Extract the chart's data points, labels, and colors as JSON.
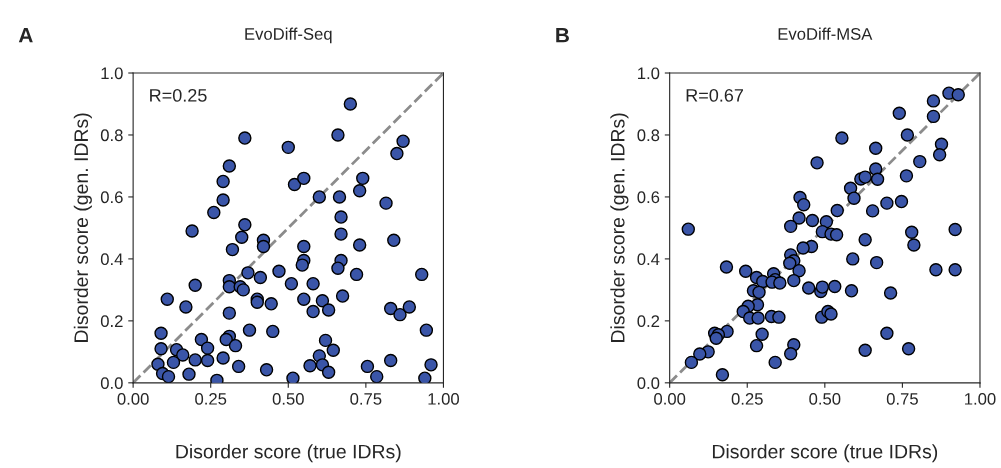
{
  "chart_data": [
    {
      "type": "scatter",
      "title": "EvoDiff-Seq",
      "xlabel": "Disorder score (true IDRs)",
      "ylabel": "Disorder score (gen. IDRs)",
      "annotations": [
        "A",
        "R=0.25"
      ],
      "xlim": [
        0,
        1
      ],
      "ylim": [
        0,
        1
      ],
      "xticks": [
        {
          "value": 0,
          "label": "0.00"
        },
        {
          "value": 0.25,
          "label": "0.25"
        },
        {
          "value": 0.5,
          "label": "0.50"
        },
        {
          "value": 0.75,
          "label": "0.75"
        },
        {
          "value": 1,
          "label": "1.00"
        }
      ],
      "yticks": [
        {
          "value": 0,
          "label": "0.0"
        },
        {
          "value": 0.2,
          "label": "0.2"
        },
        {
          "value": 0.4,
          "label": "0.4"
        },
        {
          "value": 0.6,
          "label": "0.6"
        },
        {
          "value": 0.8,
          "label": "0.8"
        },
        {
          "value": 1,
          "label": "1.0"
        }
      ],
      "grid": false,
      "legend": false,
      "marker": "circle",
      "series": [
        {
          "type": "line",
          "color": "#8c8c8c",
          "line_style": "dashed",
          "marker": "none",
          "x": [
            0,
            1
          ],
          "values": [
            0,
            1
          ]
        },
        {
          "color": "#3a55a8",
          "x": [
            0.7,
            0.66,
            0.36,
            0.5,
            0.87,
            0.85,
            0.31,
            0.29,
            0.52,
            0.55,
            0.74,
            0.73,
            0.6,
            0.665,
            0.29,
            0.26,
            0.815,
            0.67,
            0.19,
            0.36,
            0.35,
            0.67,
            0.32,
            0.42,
            0.42,
            0.55,
            0.73,
            0.84,
            0.55,
            0.545,
            0.67,
            0.66,
            0.47,
            0.37,
            0.31,
            0.41,
            0.31,
            0.345,
            0.355,
            0.51,
            0.58,
            0.72,
            0.93,
            0.2,
            0.11,
            0.17,
            0.4,
            0.4,
            0.445,
            0.55,
            0.61,
            0.58,
            0.63,
            0.675,
            0.83,
            0.86,
            0.89,
            0.31,
            0.09,
            0.375,
            0.45,
            0.945,
            0.22,
            0.31,
            0.3,
            0.33,
            0.62,
            0.645,
            0.09,
            0.14,
            0.24,
            0.16,
            0.2,
            0.24,
            0.29,
            0.13,
            0.08,
            0.6,
            0.61,
            0.57,
            0.34,
            0.43,
            0.755,
            0.83,
            0.96,
            0.095,
            0.114,
            0.18,
            0.27,
            0.515,
            0.63,
            0.785,
            0.94
          ],
          "values": [
            0.9,
            0.8,
            0.79,
            0.76,
            0.78,
            0.74,
            0.7,
            0.65,
            0.64,
            0.66,
            0.66,
            0.62,
            0.6,
            0.6,
            0.59,
            0.55,
            0.58,
            0.535,
            0.49,
            0.51,
            0.47,
            0.48,
            0.43,
            0.46,
            0.44,
            0.44,
            0.445,
            0.46,
            0.395,
            0.38,
            0.395,
            0.37,
            0.36,
            0.355,
            0.33,
            0.34,
            0.31,
            0.31,
            0.3,
            0.32,
            0.32,
            0.35,
            0.35,
            0.315,
            0.27,
            0.245,
            0.27,
            0.26,
            0.255,
            0.27,
            0.265,
            0.23,
            0.235,
            0.28,
            0.24,
            0.22,
            0.245,
            0.225,
            0.16,
            0.17,
            0.166,
            0.17,
            0.14,
            0.15,
            0.14,
            0.12,
            0.137,
            0.105,
            0.11,
            0.107,
            0.112,
            0.09,
            0.074,
            0.072,
            0.08,
            0.066,
            0.06,
            0.087,
            0.058,
            0.055,
            0.053,
            0.042,
            0.053,
            0.072,
            0.058,
            0.03,
            0.02,
            0.028,
            0.008,
            0.015,
            0.034,
            0.02,
            0.015
          ]
        }
      ]
    },
    {
      "type": "scatter",
      "title": "EvoDiff-MSA",
      "xlabel": "Disorder score (true IDRs)",
      "ylabel": "Disorder score (gen. IDRs)",
      "annotations": [
        "B",
        "R=0.67"
      ],
      "xlim": [
        0,
        1
      ],
      "ylim": [
        0,
        1
      ],
      "xticks": [
        {
          "value": 0,
          "label": "0.00"
        },
        {
          "value": 0.25,
          "label": "0.25"
        },
        {
          "value": 0.5,
          "label": "0.50"
        },
        {
          "value": 0.75,
          "label": "0.75"
        },
        {
          "value": 1,
          "label": "1.00"
        }
      ],
      "yticks": [
        {
          "value": 0,
          "label": "0.0"
        },
        {
          "value": 0.2,
          "label": "0.2"
        },
        {
          "value": 0.4,
          "label": "0.4"
        },
        {
          "value": 0.6,
          "label": "0.6"
        },
        {
          "value": 0.8,
          "label": "0.8"
        },
        {
          "value": 1,
          "label": "1.0"
        }
      ],
      "grid": false,
      "legend": false,
      "marker": "circle",
      "series": [
        {
          "type": "line",
          "color": "#8c8c8c",
          "line_style": "dashed",
          "marker": "none",
          "x": [
            0,
            1
          ],
          "values": [
            0,
            1
          ]
        },
        {
          "color": "#3a55a8",
          "x": [
            0.9,
            0.93,
            0.85,
            0.85,
            0.74,
            0.766,
            0.555,
            0.876,
            0.87,
            0.806,
            0.475,
            0.664,
            0.664,
            0.67,
            0.616,
            0.63,
            0.583,
            0.594,
            0.763,
            0.7,
            0.747,
            0.654,
            0.54,
            0.42,
            0.432,
            0.417,
            0.39,
            0.46,
            0.505,
            0.492,
            0.52,
            0.538,
            0.06,
            0.78,
            0.787,
            0.63,
            0.92,
            0.457,
            0.43,
            0.59,
            0.39,
            0.4,
            0.387,
            0.667,
            0.417,
            0.858,
            0.92,
            0.183,
            0.245,
            0.28,
            0.3,
            0.335,
            0.34,
            0.33,
            0.355,
            0.4,
            0.448,
            0.487,
            0.492,
            0.532,
            0.586,
            0.712,
            0.27,
            0.288,
            0.283,
            0.253,
            0.237,
            0.258,
            0.285,
            0.328,
            0.352,
            0.49,
            0.51,
            0.52,
            0.185,
            0.145,
            0.157,
            0.15,
            0.298,
            0.28,
            0.4,
            0.39,
            0.7,
            0.63,
            0.77,
            0.124,
            0.097,
            0.07,
            0.34,
            0.17
          ],
          "values": [
            0.935,
            0.93,
            0.91,
            0.86,
            0.87,
            0.8,
            0.79,
            0.77,
            0.736,
            0.714,
            0.71,
            0.757,
            0.69,
            0.657,
            0.658,
            0.664,
            0.628,
            0.596,
            0.668,
            0.58,
            0.585,
            0.555,
            0.556,
            0.598,
            0.575,
            0.532,
            0.505,
            0.524,
            0.52,
            0.488,
            0.48,
            0.478,
            0.496,
            0.486,
            0.445,
            0.462,
            0.495,
            0.44,
            0.435,
            0.4,
            0.413,
            0.394,
            0.386,
            0.388,
            0.362,
            0.365,
            0.365,
            0.374,
            0.36,
            0.34,
            0.327,
            0.352,
            0.333,
            0.325,
            0.322,
            0.33,
            0.306,
            0.295,
            0.309,
            0.311,
            0.297,
            0.29,
            0.297,
            0.292,
            0.252,
            0.247,
            0.23,
            0.209,
            0.209,
            0.214,
            0.212,
            0.212,
            0.23,
            0.222,
            0.166,
            0.16,
            0.155,
            0.144,
            0.157,
            0.12,
            0.123,
            0.094,
            0.16,
            0.105,
            0.11,
            0.1,
            0.093,
            0.066,
            0.066,
            0.026
          ]
        }
      ]
    }
  ]
}
